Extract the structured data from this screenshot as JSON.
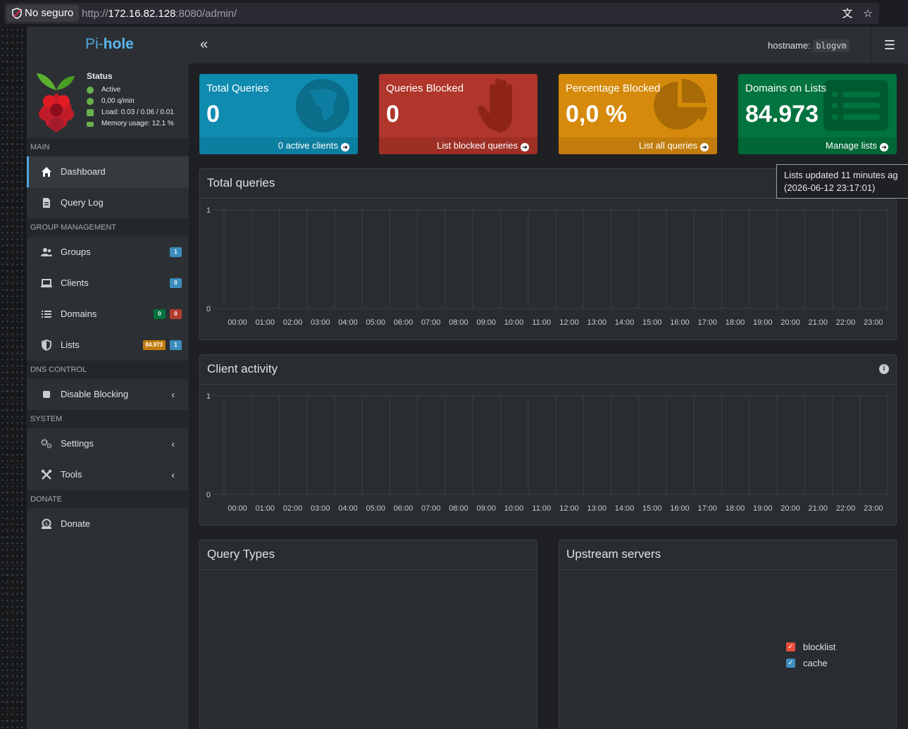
{
  "browser": {
    "security_label": "No seguro",
    "url_prefix": "http://",
    "url_host": "172.16.82.128",
    "url_rest": ":8080/admin/",
    "icons": [
      "translate-icon",
      "bookmark-star-icon"
    ]
  },
  "sidebar": {
    "logo_prefix": "Pi-",
    "logo_suffix": "hole",
    "status": {
      "title": "Status",
      "active": "Active",
      "rate": "0,00 q/min",
      "load": "Load: 0.03 / 0.06 / 0.01",
      "memory": "Memory usage: 12.1 %"
    },
    "sections": {
      "main": "MAIN",
      "group": "GROUP MANAGEMENT",
      "dns": "DNS CONTROL",
      "system": "SYSTEM",
      "donate": "DONATE"
    },
    "items": {
      "dashboard": "Dashboard",
      "query_log": "Query Log",
      "groups": "Groups",
      "groups_badge": "1",
      "clients": "Clients",
      "clients_badge": "0",
      "domains": "Domains",
      "domains_badge_allow": "0",
      "domains_badge_deny": "0",
      "lists": "Lists",
      "lists_badge_domains": "84.973",
      "lists_badge_count": "1",
      "disable_blocking": "Disable Blocking",
      "settings": "Settings",
      "tools": "Tools",
      "donate": "Donate"
    }
  },
  "topbar": {
    "hostname_label": "hostname:",
    "hostname_value": "blogvm"
  },
  "stats": [
    {
      "title": "Total Queries",
      "value": "0",
      "footer": "0 active clients",
      "color": "#0f8bb0"
    },
    {
      "title": "Queries Blocked",
      "value": "0",
      "footer": "List blocked queries",
      "color": "#b0352a"
    },
    {
      "title": "Percentage Blocked",
      "value": "0,0 %",
      "footer": "List all queries",
      "color": "#d68a0c"
    },
    {
      "title": "Domains on Lists",
      "value": "84.973",
      "footer": "Manage lists",
      "color": "#00733e"
    }
  ],
  "tooltip": {
    "line1": "Lists updated 11 minutes ag",
    "line2": "(2026-06-12 23:17:01)"
  },
  "panels": {
    "total_queries": "Total queries",
    "client_activity": "Client activity",
    "query_types": "Query Types",
    "upstream_servers": "Upstream servers"
  },
  "legend": {
    "blocklist": "blocklist",
    "cache": "cache",
    "blocklist_color": "#e74c3c",
    "cache_color": "#3c8dbc"
  },
  "chart_data": [
    {
      "type": "bar",
      "title": "Total queries",
      "categories": [
        "00:00",
        "01:00",
        "02:00",
        "03:00",
        "04:00",
        "05:00",
        "06:00",
        "07:00",
        "08:00",
        "09:00",
        "10:00",
        "11:00",
        "12:00",
        "13:00",
        "14:00",
        "15:00",
        "16:00",
        "17:00",
        "18:00",
        "19:00",
        "20:00",
        "21:00",
        "22:00",
        "23:00"
      ],
      "values": [
        0,
        0,
        0,
        0,
        0,
        0,
        0,
        0,
        0,
        0,
        0,
        0,
        0,
        0,
        0,
        0,
        0,
        0,
        0,
        0,
        0,
        0,
        0,
        0
      ],
      "yticks": [
        "1",
        "0"
      ],
      "ylim": [
        0,
        1
      ],
      "grid": true
    },
    {
      "type": "bar",
      "title": "Client activity",
      "categories": [
        "00:00",
        "01:00",
        "02:00",
        "03:00",
        "04:00",
        "05:00",
        "06:00",
        "07:00",
        "08:00",
        "09:00",
        "10:00",
        "11:00",
        "12:00",
        "13:00",
        "14:00",
        "15:00",
        "16:00",
        "17:00",
        "18:00",
        "19:00",
        "20:00",
        "21:00",
        "22:00",
        "23:00"
      ],
      "values": [
        0,
        0,
        0,
        0,
        0,
        0,
        0,
        0,
        0,
        0,
        0,
        0,
        0,
        0,
        0,
        0,
        0,
        0,
        0,
        0,
        0,
        0,
        0,
        0
      ],
      "yticks": [
        "1",
        "0"
      ],
      "ylim": [
        0,
        1
      ],
      "grid": true
    }
  ]
}
